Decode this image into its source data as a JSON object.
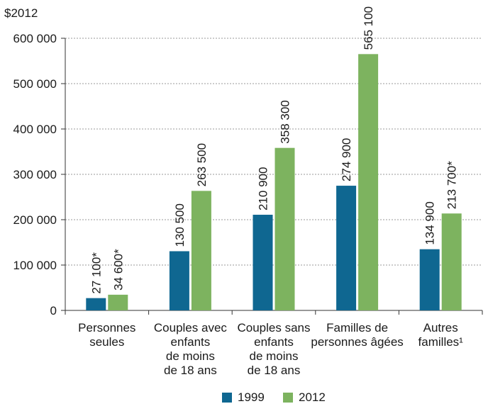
{
  "chart_data": {
    "type": "bar",
    "y_unit_label": "$2012",
    "categories": [
      [
        "Personnes",
        "seules"
      ],
      [
        "Couples avec",
        "enfants",
        "de moins",
        "de 18 ans"
      ],
      [
        "Couples sans",
        "enfants",
        "de moins",
        "de 18 ans"
      ],
      [
        "Familles de",
        "personnes âgées"
      ],
      [
        "Autres",
        "familles¹"
      ]
    ],
    "series": [
      {
        "name": "1999",
        "color": "#0f6791",
        "values": [
          27100,
          130500,
          210900,
          274900,
          134900
        ],
        "labels": [
          "27 100*",
          "130 500",
          "210 900",
          "274 900",
          "134 900"
        ]
      },
      {
        "name": "2012",
        "color": "#7db35f",
        "values": [
          34600,
          263500,
          358300,
          565100,
          213700
        ],
        "labels": [
          "34 600*",
          "263 500",
          "358 300",
          "565 100",
          "213 700*"
        ]
      }
    ],
    "ylim": [
      0,
      600000
    ],
    "yticks": [
      {
        "value": 0,
        "label": "0"
      },
      {
        "value": 100000,
        "label": "100 000"
      },
      {
        "value": 200000,
        "label": "200 000"
      },
      {
        "value": 300000,
        "label": "300 000"
      },
      {
        "value": 400000,
        "label": "400 000"
      },
      {
        "value": 500000,
        "label": "500 000"
      },
      {
        "value": 600000,
        "label": "600 000"
      }
    ],
    "grid": true,
    "legend_position": "bottom-center"
  }
}
